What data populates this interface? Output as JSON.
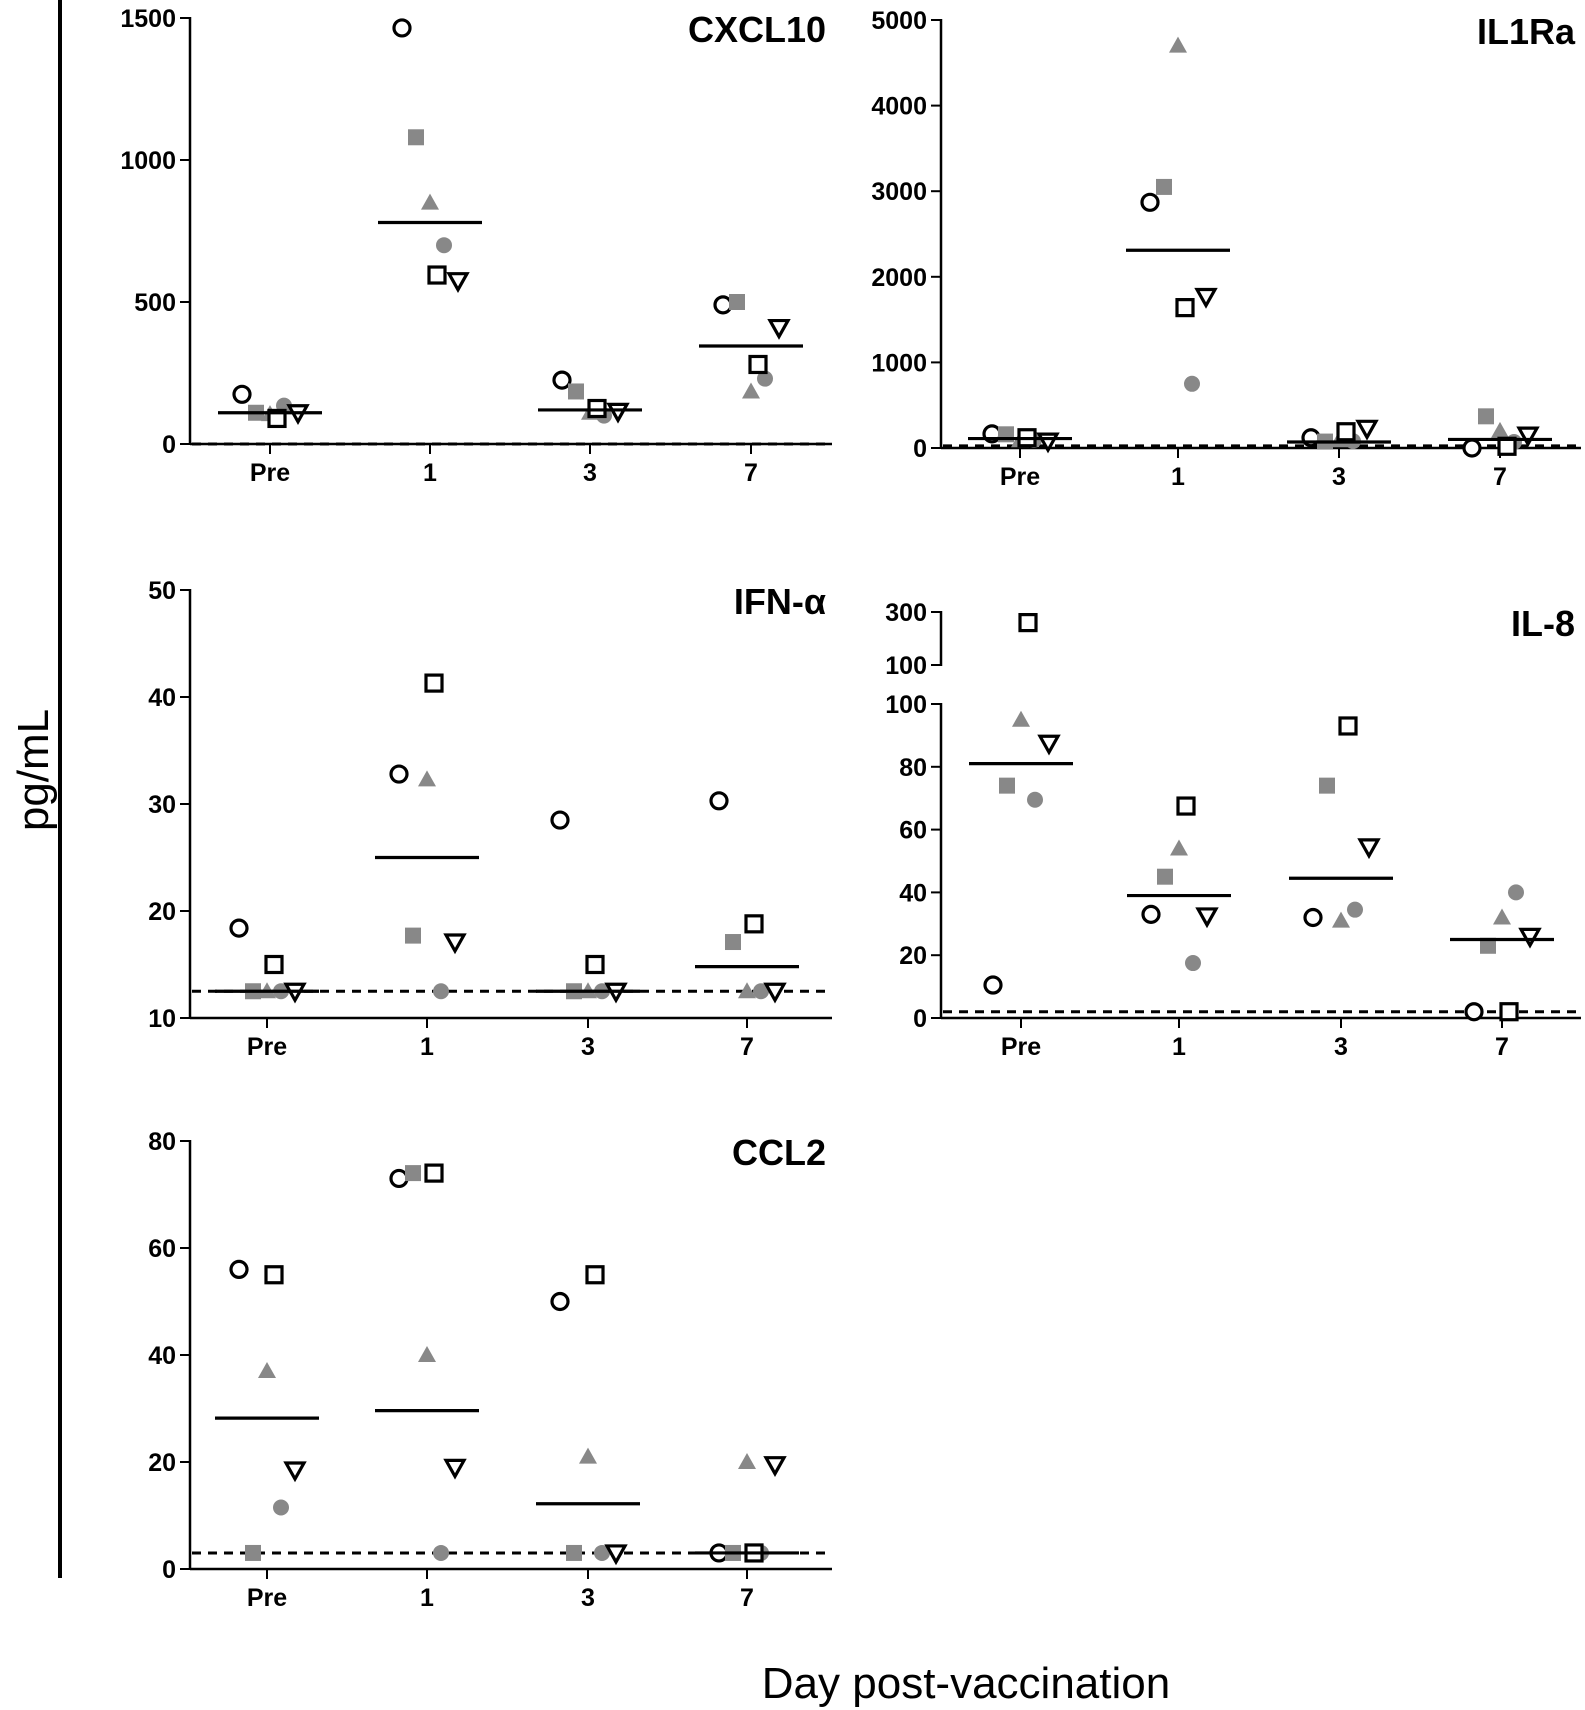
{
  "figure": {
    "ylabel": "pg/mL",
    "xlabel": "Day post-vaccination"
  },
  "chart_data": [
    {
      "type": "scatter",
      "title": "CXCL10",
      "categories": [
        "Pre",
        "1",
        "3",
        "7"
      ],
      "ylim": [
        0,
        1500
      ],
      "yticks": [
        0,
        500,
        1000,
        1500
      ],
      "detection_limit": 0,
      "means": [
        110,
        780,
        120,
        345
      ],
      "series": [
        {
          "marker": "circle",
          "style": "open",
          "values": [
            175,
            1465,
            225,
            490
          ]
        },
        {
          "marker": "square",
          "style": "filled",
          "values": [
            110,
            1080,
            185,
            500
          ]
        },
        {
          "marker": "triangle",
          "style": "filled",
          "values": [
            105,
            850,
            110,
            185
          ]
        },
        {
          "marker": "circle",
          "style": "filled",
          "values": [
            135,
            700,
            100,
            230
          ]
        },
        {
          "marker": "triangle-down",
          "style": "open",
          "values": [
            110,
            575,
            115,
            410
          ]
        },
        {
          "marker": "square",
          "style": "open",
          "values": [
            90,
            595,
            125,
            280
          ]
        }
      ]
    },
    {
      "type": "scatter",
      "title": "IL1Ra",
      "categories": [
        "Pre",
        "1",
        "3",
        "7"
      ],
      "ylim": [
        0,
        5000
      ],
      "yticks": [
        0,
        1000,
        2000,
        3000,
        4000,
        5000
      ],
      "detection_limit": 25,
      "means": [
        110,
        2310,
        70,
        100
      ],
      "series": [
        {
          "marker": "circle",
          "style": "open",
          "values": [
            165,
            2870,
            120,
            0
          ]
        },
        {
          "marker": "square",
          "style": "filled",
          "values": [
            160,
            3050,
            75,
            370
          ]
        },
        {
          "marker": "triangle",
          "style": "filled",
          "values": [
            90,
            4700,
            90,
            200
          ]
        },
        {
          "marker": "circle",
          "style": "filled",
          "values": [
            95,
            750,
            80,
            70
          ]
        },
        {
          "marker": "triangle-down",
          "style": "open",
          "values": [
            80,
            1770,
            230,
            150
          ]
        },
        {
          "marker": "square",
          "style": "open",
          "values": [
            120,
            1640,
            190,
            20
          ]
        }
      ]
    },
    {
      "type": "scatter",
      "title": "IFN-α",
      "categories": [
        "Pre",
        "1",
        "3",
        "7"
      ],
      "ylim": [
        10,
        50
      ],
      "yticks": [
        10,
        20,
        30,
        40,
        50
      ],
      "detection_limit": 12.5,
      "means": [
        12.5,
        25,
        12.5,
        14.8
      ],
      "series": [
        {
          "marker": "circle",
          "style": "open",
          "values": [
            18.4,
            32.8,
            28.5,
            30.3
          ]
        },
        {
          "marker": "square",
          "style": "filled",
          "values": [
            12.5,
            17.7,
            12.5,
            17.1
          ]
        },
        {
          "marker": "triangle",
          "style": "filled",
          "values": [
            12.5,
            32.3,
            12.5,
            12.5
          ]
        },
        {
          "marker": "circle",
          "style": "filled",
          "values": [
            12.5,
            12.5,
            12.5,
            12.5
          ]
        },
        {
          "marker": "triangle-down",
          "style": "open",
          "values": [
            12.5,
            17.1,
            12.5,
            12.5
          ]
        },
        {
          "marker": "square",
          "style": "open",
          "values": [
            15.0,
            41.3,
            15.0,
            18.8
          ]
        }
      ]
    },
    {
      "type": "scatter",
      "title": "IL-8",
      "categories": [
        "Pre",
        "1",
        "3",
        "7"
      ],
      "ylim": [
        0,
        300
      ],
      "yticks": [
        0,
        20,
        40,
        60,
        80,
        100
      ],
      "yticks_upper": [
        100,
        300
      ],
      "axis_break": 100,
      "detection_limit": 2,
      "means": [
        81,
        39,
        44.5,
        25
      ],
      "series": [
        {
          "marker": "circle",
          "style": "open",
          "values": [
            10.5,
            33,
            32,
            2
          ]
        },
        {
          "marker": "square",
          "style": "filled",
          "values": [
            74,
            45,
            74,
            23
          ]
        },
        {
          "marker": "triangle",
          "style": "filled",
          "values": [
            95,
            54,
            31,
            32
          ]
        },
        {
          "marker": "circle",
          "style": "filled",
          "values": [
            69.5,
            17.5,
            34.5,
            40
          ]
        },
        {
          "marker": "triangle-down",
          "style": "open",
          "values": [
            87.5,
            32.5,
            54.5,
            26
          ]
        },
        {
          "marker": "square",
          "style": "open",
          "values": [
            260,
            67.5,
            93,
            2
          ]
        }
      ]
    },
    {
      "type": "scatter",
      "title": "CCL2",
      "categories": [
        "Pre",
        "1",
        "3",
        "7"
      ],
      "ylim": [
        0,
        80
      ],
      "yticks": [
        0,
        20,
        40,
        60,
        80
      ],
      "detection_limit": 3,
      "means": [
        28.2,
        29.6,
        12.2,
        3
      ],
      "series": [
        {
          "marker": "circle",
          "style": "open",
          "values": [
            56,
            73,
            50,
            3
          ]
        },
        {
          "marker": "square",
          "style": "filled",
          "values": [
            3,
            74,
            3,
            3
          ]
        },
        {
          "marker": "triangle",
          "style": "filled",
          "values": [
            37,
            40,
            21,
            20
          ]
        },
        {
          "marker": "circle",
          "style": "filled",
          "values": [
            11.5,
            3,
            3,
            3
          ]
        },
        {
          "marker": "triangle-down",
          "style": "open",
          "values": [
            18.5,
            19,
            3,
            19.5
          ]
        },
        {
          "marker": "square",
          "style": "open",
          "values": [
            55,
            74,
            55,
            3
          ]
        }
      ]
    }
  ]
}
